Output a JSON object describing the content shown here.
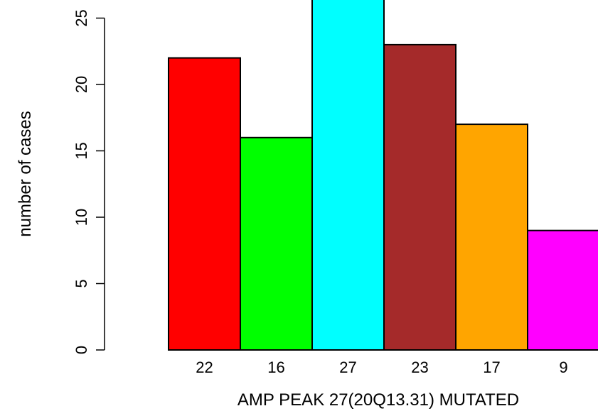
{
  "chart_data": {
    "type": "bar",
    "title": "",
    "xlabel": "AMP PEAK 27(20Q13.31) MUTATED",
    "ylabel": "number of cases",
    "categories": [
      "22",
      "16",
      "27",
      "23",
      "17",
      "9"
    ],
    "values": [
      22,
      16,
      27,
      23,
      17,
      9
    ],
    "colors": [
      "#ff0000",
      "#00ff00",
      "#00ffff",
      "#a52a2a",
      "#ffa500",
      "#ff00ff"
    ],
    "yticks": [
      0,
      5,
      10,
      15,
      20,
      25
    ],
    "ylim": [
      0,
      27
    ],
    "grid": false,
    "legend": "none"
  }
}
